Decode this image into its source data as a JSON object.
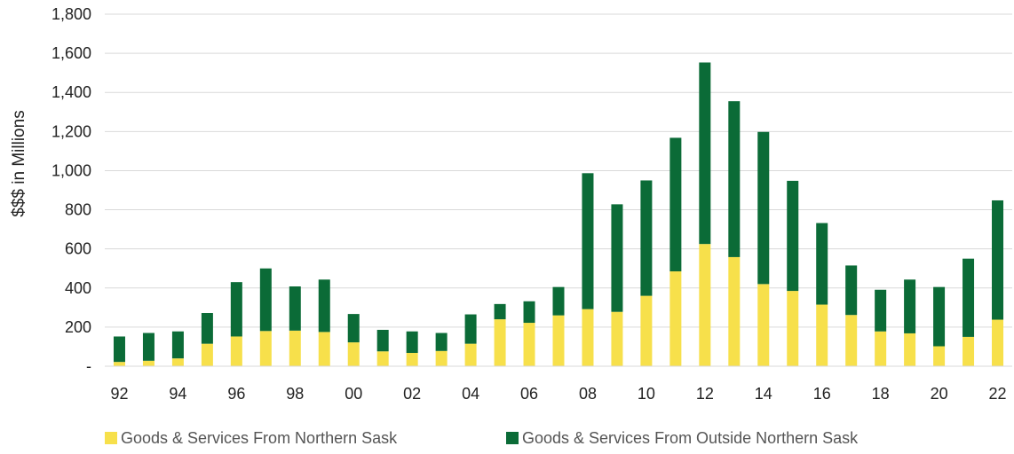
{
  "chart_data": {
    "type": "bar",
    "stacked": true,
    "title": "",
    "xlabel": "",
    "ylabel": "$$$ in Millions",
    "ylim": [
      0,
      1800
    ],
    "yticks": [
      0,
      200,
      400,
      600,
      800,
      1000,
      1200,
      1400,
      1600,
      1800
    ],
    "ytick_labels": [
      "-",
      "200",
      "400",
      "600",
      "800",
      "1,000",
      "1,200",
      "1,400",
      "1,600",
      "1,800"
    ],
    "categories": [
      "92",
      "93",
      "94",
      "95",
      "96",
      "97",
      "98",
      "99",
      "00",
      "01",
      "02",
      "03",
      "04",
      "05",
      "06",
      "07",
      "08",
      "09",
      "10",
      "11",
      "12",
      "13",
      "14",
      "15",
      "16",
      "17",
      "18",
      "19",
      "20",
      "21",
      "22"
    ],
    "xtick_labels": [
      "92",
      "94",
      "96",
      "98",
      "00",
      "02",
      "04",
      "06",
      "08",
      "10",
      "12",
      "14",
      "16",
      "18",
      "20",
      "22"
    ],
    "grid": true,
    "legend_position": "bottom",
    "series": [
      {
        "name": "Goods & Services From Northern Sask",
        "color": "#f7e04b",
        "values": [
          22,
          28,
          40,
          115,
          152,
          180,
          182,
          175,
          122,
          76,
          68,
          78,
          115,
          240,
          222,
          260,
          292,
          278,
          360,
          485,
          625,
          558,
          420,
          385,
          315,
          262,
          178,
          168,
          102,
          150,
          238
        ]
      },
      {
        "name": "Goods & Services From Outside Northern Sask",
        "color": "#0b6b37",
        "values": [
          130,
          142,
          138,
          157,
          278,
          320,
          226,
          268,
          145,
          110,
          110,
          92,
          150,
          78,
          110,
          145,
          695,
          550,
          590,
          683,
          928,
          797,
          778,
          563,
          417,
          253,
          213,
          275,
          303,
          400,
          610
        ]
      }
    ]
  }
}
